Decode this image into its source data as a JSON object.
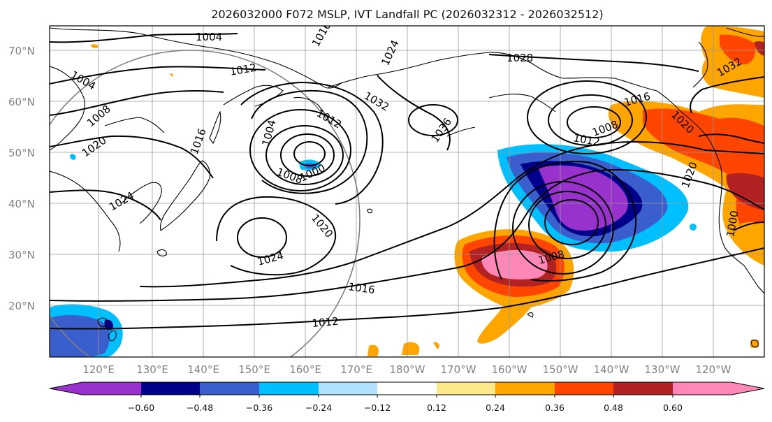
{
  "title": "2026032000 F072 MSLP, IVT Landfall PC (2026032312 - 2026032512)",
  "map": {
    "lat_labels": [
      "70°N",
      "60°N",
      "50°N",
      "40°N",
      "30°N",
      "20°N"
    ],
    "lon_labels": [
      "120°E",
      "130°E",
      "140°E",
      "150°E",
      "160°E",
      "170°E",
      "180°W",
      "170°W",
      "160°W",
      "150°W",
      "140°W",
      "130°W",
      "120°W"
    ],
    "isobar_labels": [
      {
        "text": "1004"
      },
      {
        "text": "1012"
      },
      {
        "text": "1016"
      },
      {
        "text": "1024"
      },
      {
        "text": "1004"
      },
      {
        "text": "1008"
      },
      {
        "text": "1020"
      },
      {
        "text": "1016"
      },
      {
        "text": "1024"
      },
      {
        "text": "1004"
      },
      {
        "text": "1008"
      },
      {
        "text": "1000"
      },
      {
        "text": "1012"
      },
      {
        "text": "1032"
      },
      {
        "text": "1036"
      },
      {
        "text": "1028"
      },
      {
        "text": "1020"
      },
      {
        "text": "1024"
      },
      {
        "text": "1016"
      },
      {
        "text": "1012"
      },
      {
        "text": "1008"
      },
      {
        "text": "1012"
      },
      {
        "text": "1008"
      },
      {
        "text": "1016"
      },
      {
        "text": "1020"
      },
      {
        "text": "1032"
      },
      {
        "text": "1020"
      },
      {
        "text": "1000"
      }
    ]
  },
  "colorbar": {
    "ticks": [
      "−0.60",
      "−0.48",
      "−0.36",
      "−0.24",
      "−0.12",
      "0.12",
      "0.24",
      "0.36",
      "0.48",
      "0.60"
    ],
    "colors": [
      "#9932cc",
      "#00008b",
      "#3a5fcd",
      "#00bfff",
      "#b0e2ff",
      "#ffffff",
      "#fde98b",
      "#ffa500",
      "#ff4500",
      "#b22222",
      "#ff88b8"
    ]
  }
}
